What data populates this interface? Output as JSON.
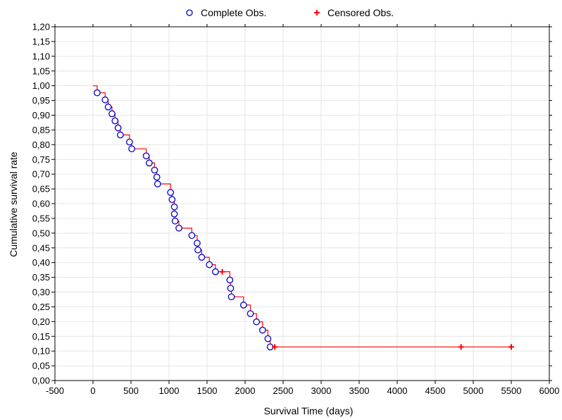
{
  "chart_data": {
    "type": "scatter",
    "xlabel": "Survival Time (days)",
    "ylabel": "Cumulative survival rate",
    "xlim": [
      -500,
      6000
    ],
    "ylim": [
      0,
      1.2
    ],
    "x_ticks": [
      -500,
      0,
      500,
      1000,
      1500,
      2000,
      2500,
      3000,
      3500,
      4000,
      4500,
      5000,
      5500,
      6000
    ],
    "x_tick_labels": [
      "-500",
      "0",
      "500",
      "1000",
      "1500",
      "2000",
      "2500",
      "3000",
      "3500",
      "4000",
      "4500",
      "5000",
      "5500",
      "6000"
    ],
    "y_ticks": [
      0,
      0.05,
      0.1,
      0.15,
      0.2,
      0.25,
      0.3,
      0.35,
      0.4,
      0.45,
      0.5,
      0.55,
      0.6,
      0.65,
      0.7,
      0.75,
      0.8,
      0.85,
      0.9,
      0.95,
      1.0,
      1.05,
      1.1,
      1.15,
      1.2
    ],
    "y_tick_labels": [
      "0,00",
      "0,05",
      "0,10",
      "0,15",
      "0,20",
      "0,25",
      "0,30",
      "0,35",
      "0,40",
      "0,45",
      "0,50",
      "0,55",
      "0,60",
      "0,65",
      "0,70",
      "0,75",
      "0,80",
      "0,85",
      "0,90",
      "0,95",
      "1,00",
      "1,05",
      "1,10",
      "1,15",
      "1,20"
    ],
    "grid": true,
    "legend_position": "top-center",
    "colors": {
      "complete": "#0000cc",
      "censored": "#ff0000",
      "step_line": "#ff0000",
      "grid": "#e6e6e6"
    },
    "series": [
      {
        "name": "Complete Obs.",
        "marker": "circle",
        "points": [
          [
            55,
            0.976
          ],
          [
            160,
            0.952
          ],
          [
            200,
            0.928
          ],
          [
            250,
            0.905
          ],
          [
            290,
            0.881
          ],
          [
            330,
            0.857
          ],
          [
            360,
            0.833
          ],
          [
            480,
            0.809
          ],
          [
            510,
            0.786
          ],
          [
            700,
            0.762
          ],
          [
            740,
            0.738
          ],
          [
            810,
            0.714
          ],
          [
            840,
            0.69
          ],
          [
            850,
            0.667
          ],
          [
            1020,
            0.638
          ],
          [
            1040,
            0.614
          ],
          [
            1070,
            0.589
          ],
          [
            1070,
            0.565
          ],
          [
            1080,
            0.541
          ],
          [
            1130,
            0.517
          ],
          [
            1300,
            0.492
          ],
          [
            1370,
            0.466
          ],
          [
            1380,
            0.443
          ],
          [
            1430,
            0.418
          ],
          [
            1530,
            0.393
          ],
          [
            1610,
            0.369
          ],
          [
            1800,
            0.341
          ],
          [
            1810,
            0.313
          ],
          [
            1820,
            0.284
          ],
          [
            1980,
            0.256
          ],
          [
            2070,
            0.227
          ],
          [
            2150,
            0.199
          ],
          [
            2230,
            0.171
          ],
          [
            2300,
            0.142
          ],
          [
            2330,
            0.114
          ]
        ]
      },
      {
        "name": "Censored Obs.",
        "marker": "plus",
        "points": [
          [
            1700,
            0.369
          ],
          [
            2390,
            0.114
          ],
          [
            4840,
            0.114
          ],
          [
            5500,
            0.114
          ]
        ]
      }
    ]
  }
}
